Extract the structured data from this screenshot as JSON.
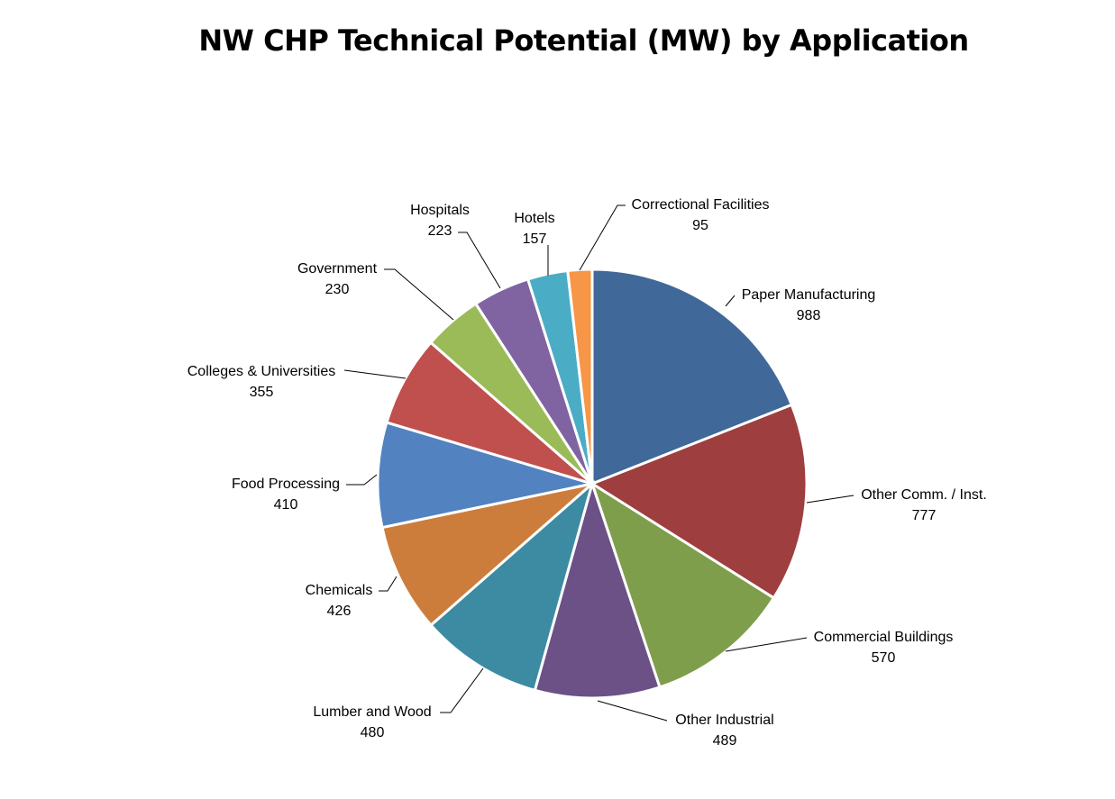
{
  "chart_data": {
    "type": "pie",
    "title": "NW CHP Technical Potential (MW) by Application",
    "legend": "none",
    "slices": [
      {
        "label": "Paper Manufacturing",
        "value": 988,
        "color": "#406899"
      },
      {
        "label": "Other Comm. / Inst.",
        "value": 777,
        "color": "#9e3e3e"
      },
      {
        "label": "Commercial Buildings",
        "value": 570,
        "color": "#7f9e4b"
      },
      {
        "label": "Other Industrial",
        "value": 489,
        "color": "#6b5186"
      },
      {
        "label": "Lumber and Wood",
        "value": 480,
        "color": "#3c8ba2"
      },
      {
        "label": "Chemicals",
        "value": 426,
        "color": "#cd7d3b"
      },
      {
        "label": "Food Processing",
        "value": 410,
        "color": "#5282c0"
      },
      {
        "label": "Colleges & Universities",
        "value": 355,
        "color": "#c0504d"
      },
      {
        "label": "Government",
        "value": 230,
        "color": "#9bbb59"
      },
      {
        "label": "Hospitals",
        "value": 223,
        "color": "#8064a2"
      },
      {
        "label": "Hotels",
        "value": 157,
        "color": "#4bacc6"
      },
      {
        "label": "Correctional Facilities",
        "value": 95,
        "color": "#f79646"
      }
    ]
  }
}
